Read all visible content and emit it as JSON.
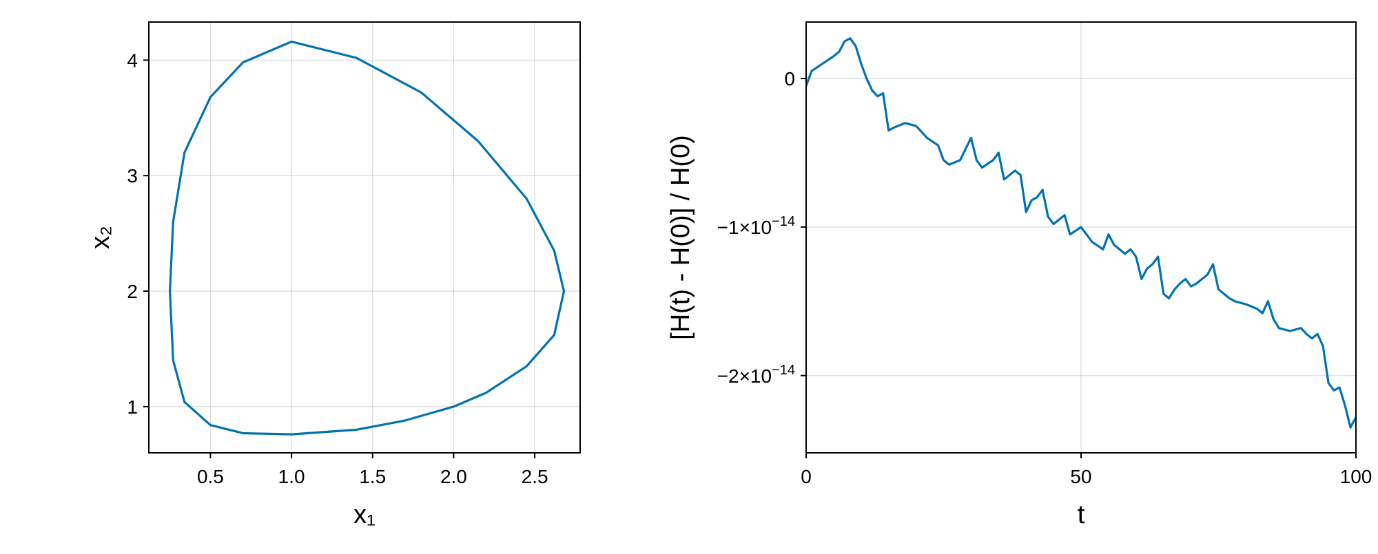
{
  "colors": {
    "series": "#0072b2"
  },
  "chart_data": [
    {
      "type": "line",
      "title": "",
      "xlabel": "x₁",
      "ylabel": "x₂",
      "xlim": [
        0.12,
        2.78
      ],
      "ylim": [
        0.6,
        4.33
      ],
      "grid": true,
      "x_ticks": [
        {
          "value": 0.5,
          "label": "0.5"
        },
        {
          "value": 1.0,
          "label": "1.0"
        },
        {
          "value": 1.5,
          "label": "1.5"
        },
        {
          "value": 2.0,
          "label": "2.0"
        },
        {
          "value": 2.5,
          "label": "2.5"
        }
      ],
      "y_ticks": [
        {
          "value": 1,
          "label": "1"
        },
        {
          "value": 2,
          "label": "2"
        },
        {
          "value": 3,
          "label": "3"
        },
        {
          "value": 4,
          "label": "4"
        }
      ],
      "series": [
        {
          "closed": true,
          "x": [
            0.25,
            0.27,
            0.34,
            0.5,
            0.7,
            1.0,
            1.4,
            1.8,
            2.15,
            2.45,
            2.62,
            2.68,
            2.62,
            2.45,
            2.2,
            2.0,
            1.7,
            1.4,
            1.0,
            0.7,
            0.5,
            0.34,
            0.27
          ],
          "y": [
            2.0,
            2.6,
            3.2,
            3.68,
            3.98,
            4.16,
            4.02,
            3.72,
            3.3,
            2.8,
            2.35,
            2.0,
            1.62,
            1.35,
            1.12,
            1.0,
            0.88,
            0.8,
            0.76,
            0.77,
            0.84,
            1.04,
            1.4
          ]
        }
      ]
    },
    {
      "type": "line",
      "title": "",
      "xlabel": "t",
      "ylabel": "[H(t) - H(0)] / H(0)",
      "xlim": [
        0,
        100
      ],
      "ylim": [
        -2.52e-14,
        3.8e-15
      ],
      "grid": true,
      "x_ticks": [
        {
          "value": 0,
          "label": "0"
        },
        {
          "value": 50,
          "label": "50"
        },
        {
          "value": 100,
          "label": "100"
        }
      ],
      "y_ticks": [
        {
          "value": 0,
          "base": "0",
          "exp": ""
        },
        {
          "value": -1e-14,
          "base": "−1×10",
          "exp": "−14"
        },
        {
          "value": -2e-14,
          "base": "−2×10",
          "exp": "−14"
        }
      ],
      "series": [
        {
          "x": [
            0,
            1,
            3,
            5,
            6,
            7,
            8,
            9,
            10,
            11,
            12,
            13,
            14,
            15,
            16,
            18,
            20,
            22,
            24,
            25,
            26,
            28,
            30,
            31,
            32,
            34,
            35,
            36,
            38,
            39,
            40,
            41,
            42,
            43,
            44,
            45,
            46,
            47,
            48,
            50,
            51,
            52,
            54,
            55,
            56,
            57,
            58,
            59,
            60,
            61,
            62,
            63,
            64,
            65,
            66,
            67,
            68,
            69,
            70,
            71,
            72,
            73,
            74,
            75,
            76,
            77,
            78,
            80,
            82,
            83,
            84,
            85,
            86,
            88,
            90,
            91,
            92,
            93,
            94,
            95,
            96,
            97,
            98,
            99,
            100
          ],
          "y": [
            -5e-16,
            5e-16,
            1e-15,
            1.5e-15,
            1.8e-15,
            2.5e-15,
            2.7e-15,
            2.2e-15,
            1e-15,
            0.0,
            -8e-16,
            -1.2e-15,
            -1e-15,
            -3.5e-15,
            -3.3e-15,
            -3e-15,
            -3.2e-15,
            -4e-15,
            -4.5e-15,
            -5.5e-15,
            -5.8e-15,
            -5.5e-15,
            -4e-15,
            -5.5e-15,
            -6e-15,
            -5.5e-15,
            -5e-15,
            -6.8e-15,
            -6.2e-15,
            -6.5e-15,
            -9e-15,
            -8.2e-15,
            -8e-15,
            -7.5e-15,
            -9.3e-15,
            -9.8e-15,
            -9.5e-15,
            -9.2e-15,
            -1.05e-14,
            -1e-14,
            -1.05e-14,
            -1.1e-14,
            -1.15e-14,
            -1.05e-14,
            -1.12e-14,
            -1.15e-14,
            -1.18e-14,
            -1.15e-14,
            -1.2e-14,
            -1.35e-14,
            -1.28e-14,
            -1.25e-14,
            -1.2e-14,
            -1.45e-14,
            -1.48e-14,
            -1.42e-14,
            -1.38e-14,
            -1.35e-14,
            -1.4e-14,
            -1.38e-14,
            -1.35e-14,
            -1.32e-14,
            -1.25e-14,
            -1.42e-14,
            -1.45e-14,
            -1.48e-14,
            -1.5e-14,
            -1.52e-14,
            -1.55e-14,
            -1.58e-14,
            -1.5e-14,
            -1.62e-14,
            -1.68e-14,
            -1.7e-14,
            -1.68e-14,
            -1.72e-14,
            -1.75e-14,
            -1.72e-14,
            -1.8e-14,
            -2.05e-14,
            -2.1e-14,
            -2.08e-14,
            -2.2e-14,
            -2.35e-14,
            -2.28e-14
          ]
        }
      ]
    }
  ]
}
